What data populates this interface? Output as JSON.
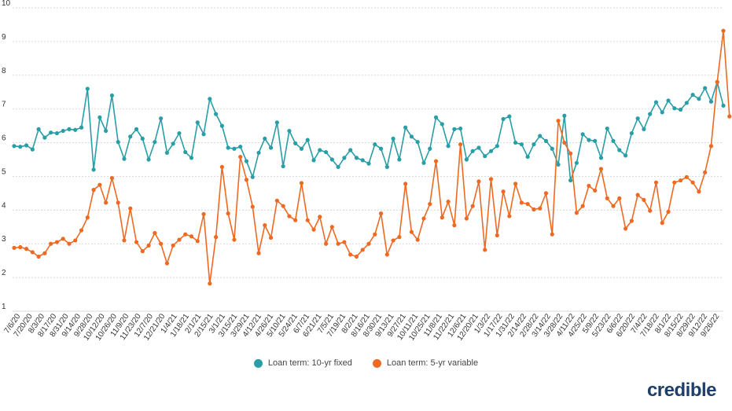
{
  "chart_data": {
    "type": "line",
    "ylim": [
      1,
      10
    ],
    "y_ticks": [
      "10",
      "9",
      "8",
      "7",
      "6",
      "5",
      "4",
      "3",
      "2",
      "1"
    ],
    "grid": true,
    "legend_position": "bottom-center",
    "x_tick_labels": [
      "7/6/20",
      "7/20/20",
      "8/3/20",
      "8/17/20",
      "8/31/20",
      "9/14/20",
      "9/28/20",
      "10/12/20",
      "10/26/20",
      "11/9/20",
      "11/23/20",
      "12/7/20",
      "12/21/20",
      "1/4/21",
      "1/18/21",
      "2/1/21",
      "2/15/21",
      "3/1/21",
      "3/15/21",
      "3/29/21",
      "4/12/21",
      "4/26/21",
      "5/10/21",
      "5/24/21",
      "6/7/21",
      "6/21/21",
      "7/5/21",
      "7/19/21",
      "8/2/21",
      "8/16/21",
      "8/30/21",
      "9/13/21",
      "9/27/21",
      "10/11/21",
      "10/25/21",
      "11/8/21",
      "11/22/21",
      "12/6/21",
      "12/20/21",
      "1/3/22",
      "1/17/22",
      "1/31/22",
      "2/14/22",
      "2/28/22",
      "3/14/22",
      "3/28/22",
      "4/11/22",
      "4/25/22",
      "5/9/22",
      "5/23/22",
      "6/6/22",
      "6/20/22",
      "7/4/22",
      "7/18/22",
      "8/1/22",
      "8/15/22",
      "8/29/22",
      "9/12/22",
      "9/26/22"
    ],
    "series": [
      {
        "name": "Loan term: 10-yr fixed",
        "color": "#2a9ea6",
        "values": [
          5.9,
          5.88,
          5.92,
          5.8,
          6.4,
          6.15,
          6.3,
          6.28,
          6.35,
          6.4,
          6.38,
          6.45,
          7.6,
          5.2,
          6.75,
          6.35,
          7.4,
          6.02,
          5.52,
          6.18,
          6.4,
          6.12,
          5.5,
          6.02,
          6.72,
          5.7,
          5.97,
          6.28,
          5.72,
          5.55,
          6.6,
          6.25,
          7.3,
          6.85,
          6.5,
          5.85,
          5.82,
          5.88,
          5.45,
          4.98,
          5.7,
          6.12,
          5.85,
          6.6,
          5.3,
          6.35,
          5.98,
          5.82,
          6.08,
          5.48,
          5.78,
          5.72,
          5.5,
          5.28,
          5.55,
          5.78,
          5.55,
          5.48,
          5.38,
          5.95,
          5.82,
          5.28,
          6.12,
          5.5,
          6.45,
          6.18,
          6.02,
          5.4,
          5.82,
          6.75,
          6.55,
          5.9,
          6.4,
          6.42,
          5.5,
          5.75,
          5.85,
          5.6,
          5.75,
          5.9,
          6.7,
          6.78,
          6.0,
          5.95,
          5.58,
          5.95,
          6.2,
          6.05,
          5.82,
          5.35,
          6.8,
          4.88,
          5.4,
          6.25,
          6.08,
          6.05,
          5.55,
          6.42,
          6.05,
          5.78,
          5.62,
          6.28,
          6.72,
          6.4,
          6.85,
          7.2,
          6.9,
          7.25,
          7.02,
          6.98,
          7.18,
          7.42,
          7.3,
          7.62,
          7.22,
          7.8,
          7.1
        ]
      },
      {
        "name": "Loan term: 5-yr variable",
        "color": "#ee6a22",
        "values": [
          2.88,
          2.9,
          2.85,
          2.75,
          2.62,
          2.72,
          3.0,
          3.05,
          3.15,
          3.0,
          3.1,
          3.4,
          3.78,
          4.6,
          4.75,
          4.22,
          4.95,
          4.22,
          3.1,
          4.05,
          3.05,
          2.78,
          2.95,
          3.32,
          3.0,
          2.42,
          2.95,
          3.12,
          3.28,
          3.22,
          3.08,
          3.88,
          1.82,
          3.2,
          5.28,
          3.9,
          3.12,
          5.58,
          4.9,
          4.1,
          2.72,
          3.55,
          3.18,
          4.28,
          4.12,
          3.82,
          3.7,
          4.8,
          3.7,
          3.42,
          3.8,
          3.0,
          3.5,
          3.0,
          3.05,
          2.68,
          2.62,
          2.82,
          3.0,
          3.28,
          3.9,
          2.68,
          3.1,
          3.2,
          4.78,
          3.35,
          3.12,
          3.75,
          4.18,
          5.45,
          3.78,
          4.25,
          3.55,
          5.95,
          3.75,
          4.12,
          4.85,
          2.82,
          4.92,
          3.25,
          4.55,
          3.82,
          4.78,
          4.22,
          4.18,
          4.02,
          4.05,
          4.5,
          3.28,
          6.65,
          6.0,
          5.68,
          3.92,
          4.12,
          4.72,
          4.58,
          5.22,
          4.35,
          4.12,
          4.35,
          3.45,
          3.68,
          4.45,
          4.3,
          3.98,
          4.82,
          3.62,
          3.95,
          4.82,
          4.88,
          4.98,
          4.82,
          4.55,
          5.12,
          5.9,
          7.8,
          9.32,
          6.78
        ]
      }
    ],
    "legend": [
      "Loan term: 10-yr fixed",
      "Loan term: 5-yr variable"
    ]
  },
  "brand": {
    "logo_text": "credible"
  }
}
